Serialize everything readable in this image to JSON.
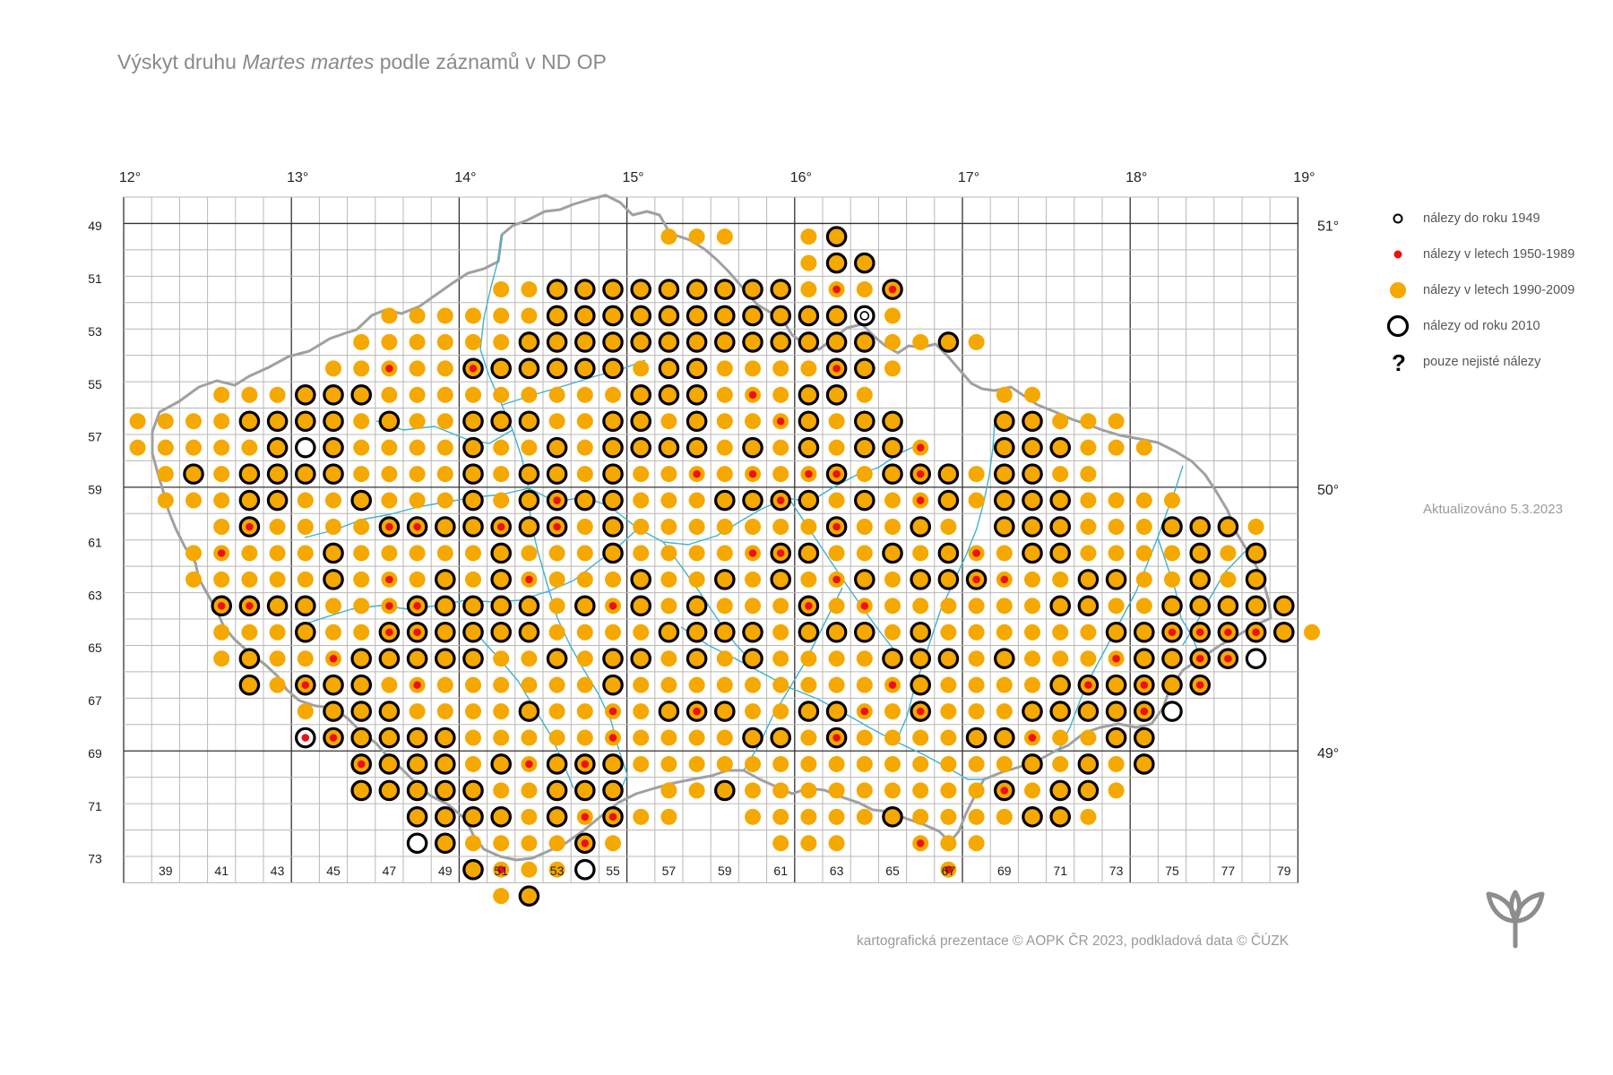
{
  "title": {
    "prefix": "Výskyt druhu ",
    "species": "Martes martes",
    "suffix": " podle záznamů v ND OP"
  },
  "legend": [
    {
      "symbol": "pre1949",
      "label": "nálezy do roku 1949"
    },
    {
      "symbol": "y1950_1989",
      "label": "nálezy v letech 1950-1989"
    },
    {
      "symbol": "y1990_2009",
      "label": "nálezy v letech 1990-2009"
    },
    {
      "symbol": "since2010",
      "label": "nálezy od roku 2010"
    },
    {
      "symbol": "uncertain",
      "label": "pouze nejisté nálezy"
    }
  ],
  "updated": "Aktualizováno 5.3.2023",
  "credits": "kartografická prezentace © AOPK ČR 2023, podkladová data © ČÚZK",
  "longitude_labels": [
    "12°",
    "13°",
    "14°",
    "15°",
    "16°",
    "17°",
    "18°",
    "19°"
  ],
  "latitude_labels": [
    "51°",
    "50°",
    "49°"
  ],
  "row_labels": [
    "49",
    "51",
    "53",
    "55",
    "57",
    "59",
    "61",
    "63",
    "65",
    "67",
    "69",
    "71",
    "73"
  ],
  "col_labels": [
    "39",
    "41",
    "43",
    "45",
    "47",
    "49",
    "51",
    "53",
    "55",
    "57",
    "59",
    "61",
    "63",
    "65",
    "67",
    "69",
    "71",
    "73",
    "75",
    "77",
    "79"
  ],
  "colors": {
    "orange": "#f5a800",
    "red": "#ee1111",
    "grid": "#b8b8b8",
    "border": "#a0a0a0",
    "river": "#3fb3c9",
    "logo": "#8d8d8d"
  },
  "grid": {
    "first_col": 38,
    "last_col": 79,
    "first_row": 48,
    "last_row": 73
  },
  "symbols_key": "o = 1990-2009, O = from 2010 over 1990-2009, r = 1950-1989 over 1990-2009, R = 1950-1989 + 1990-2009 + from 2010, W = from 2010 only, X = pre-1949 + 1950-1989 + from 2010, w = pre-1949 only",
  "occurrence_rows": [
    {
      "row": 49,
      "cells": "57o 58o 59o 62o 63O"
    },
    {
      "row": 50,
      "cells": "62o 63O 64O"
    },
    {
      "row": 51,
      "cells": "51o 52o 53O 54O 55O 56O 57O 58O 59O 60O 61O 62o 63r 64o 65R"
    },
    {
      "row": 52,
      "cells": "47o 48o 49o 50o 51o 52o 53O 54O 55O 56O 57O 58O 59O 60O 61O 62O 63O 64w 65o"
    },
    {
      "row": 53,
      "cells": "46o 47o 48o 49o 50o 51o 52O 53O 54O 55O 56O 57O 58O 59O 60O 61O 62O 63O 64O 65o 66o 67O 68o"
    },
    {
      "row": 54,
      "cells": "45o 46o 47r 48o 49o 50R 51O 52O 53O 54O 55O 56o 57O 58O 59o 60o 61o 62o 63R 64O 65o"
    },
    {
      "row": 55,
      "cells": "41o 42o 43o 44O 45O 46O 47o 48o 49o 50o 51o 52o 53o 54o 55o 56O 57O 58O 59o 60r 61o 62O 63O 64o 69o 70o"
    },
    {
      "row": 56,
      "cells": "38o 39o 40o 41o 42O 43O 44O 45O 46o 47O 48o 49o 50O 51O 52O 53o 54o 55O 56O 57o 58O 59o 60o 61r 62O 63o 64O 65O 69O 70O 71o 72o 73o"
    },
    {
      "row": 57,
      "cells": "38o 39o 40o 41o 42o 43O 44W 45O 46o 47o 48o 49o 50O 51o 52o 53O 54o 55O 56O 57O 58O 59o 60O 61o 62O 63o 64O 65O 66r 69O 70O 71O 72o 73o 74o"
    },
    {
      "row": 58,
      "cells": "39o 40O 41o 42O 43O 44O 45O 46o 47o 48o 49o 50O 51o 52O 53O 54o 55O 56o 57o 58r 59o 60r 61o 62r 63R 64o 65O 66R 67O 68o 69O 70O 71o 72o"
    },
    {
      "row": 59,
      "cells": "39o 40o 41o 42O 43O 44o 45o 46O 47o 48o 49o 50O 51o 52O 53R 54O 55O 56o 57o 58o 59O 60O 61R 62O 63o 64O 65o 66r 67O 68o 69O 70O 71O 72o 73o 74o 75o"
    },
    {
      "row": 60,
      "cells": "41o 42R 43o 44o 45o 46o 47R 48R 49O 50O 51R 52O 53R 54o 55O 56o 57o 58o 59o 60o 61o 62o 63R 64o 65o 66O 67o 69O 70O 71O 72o 73o 74o 75O 76O 77O 78o"
    },
    {
      "row": 61,
      "cells": "40o 41r 42o 43o 44o 45O 46o 47o 48o 49o 50o 51O 52o 53o 54o 55O 56o 57o 58o 59o 60r 61R 62O 63o 64o 65O 66o 67O 68r 69o 70O 71O 72o 73o 74o 75o 76O 77o 78O"
    },
    {
      "row": 62,
      "cells": "40o 41o 42o 43o 44o 45O 46o 47r 48o 49O 50o 51O 52r 53o 54o 55o 56O 57o 58o 59O 60o 61O 62o 63r 64O 65o 66O 67O 68R 69r 70o 71o 72O 73O 74o 75o 76O 77o 78O"
    },
    {
      "row": 63,
      "cells": "41R 42R 43O 44O 45o 46o 47r 48R 49O 50O 51O 52O 53o 54O 55r 56O 57o 58O 59o 60o 61o 62R 63o 64r 65o 66o 67o 68o 69o 70o 71O 72O 73o 74o 75O 76O 77O 78O 79O"
    },
    {
      "row": 64,
      "cells": "41o 42o 43o 44O 45o 46o 47R 48R 49O 50O 51O 52O 53o 54o 55o 56o 57O 58O 59O 60O 61o 62O 63O 64O 65o 66O 67o 68o 69o 70o 71o 72o 73O 74O 75R 76R 77R 78R 79O 80o"
    },
    {
      "row": 65,
      "cells": "41o 42O 43o 44o 45r 46O 47O 48O 49O 50O 51o 52o 53O 54o 55O 56O 57o 58O 59o 60O 61o 62o 63o 64o 65O 66O 67O 68o 69O 70o 71o 72o 73r 74O 75O 76R 77R 78W"
    },
    {
      "row": 66,
      "cells": "42O 43o 44R 45O 46O 47o 48r 49o 50o 51o 52o 53o 54o 55O 56o 57o 58o 59o 60o 61o 62o 63o 64o 65r 66O 67o 68o 69o 70o 71O 72R 73O 74R 75O 76R"
    },
    {
      "row": 67,
      "cells": "44o 45O 46O 47O 48o 49o 50o 51o 52O 53o 54o 55r 56o 57O 58R 59O 60o 61o 62O 63O 64r 65o 66R 67o 68o 69o 70O 71O 72O 73O 74R 75W"
    },
    {
      "row": 68,
      "cells": "44X 45R 46O 47O 48O 49O 50o 51o 52o 53o 54o 55r 56o 57o 58o 59o 60O 61O 62o 63R 64o 65o 66o 67o 68O 69O 70r 71o 72o 73O 74O"
    },
    {
      "row": 69,
      "cells": "46R 47O 48O 49O 50o 51O 52r 53O 54R 55O 56o 57o 58o 59o 60o 61o 62o 63o 64o 65o 66o 67o 68o 69o 70O 71o 72O 73o 74O"
    },
    {
      "row": 70,
      "cells": "46O 47O 48O 49O 50O 51o 52o 53O 54O 55O 57o 58o 59O 60o 61o 62o 63o 64o 65o 66o 67o 68o 69R 70o 71O 72O 73o"
    },
    {
      "row": 71,
      "cells": "48O 49O 50O 51O 52o 53O 54r 55R 56o 57o 60o 61o 62o 63o 64o 65O 66o 67o 68o 69o 70O 71O 72o"
    },
    {
      "row": 72,
      "cells": "48W 49O 50o 51o 52o 53o 54R 55o 61o 62o 63o 66r 67o 68o"
    },
    {
      "row": 73,
      "cells": "50O 51r 52o 53o 54W 67r"
    },
    {
      "row": 74,
      "cells": "51o 52O"
    }
  ]
}
